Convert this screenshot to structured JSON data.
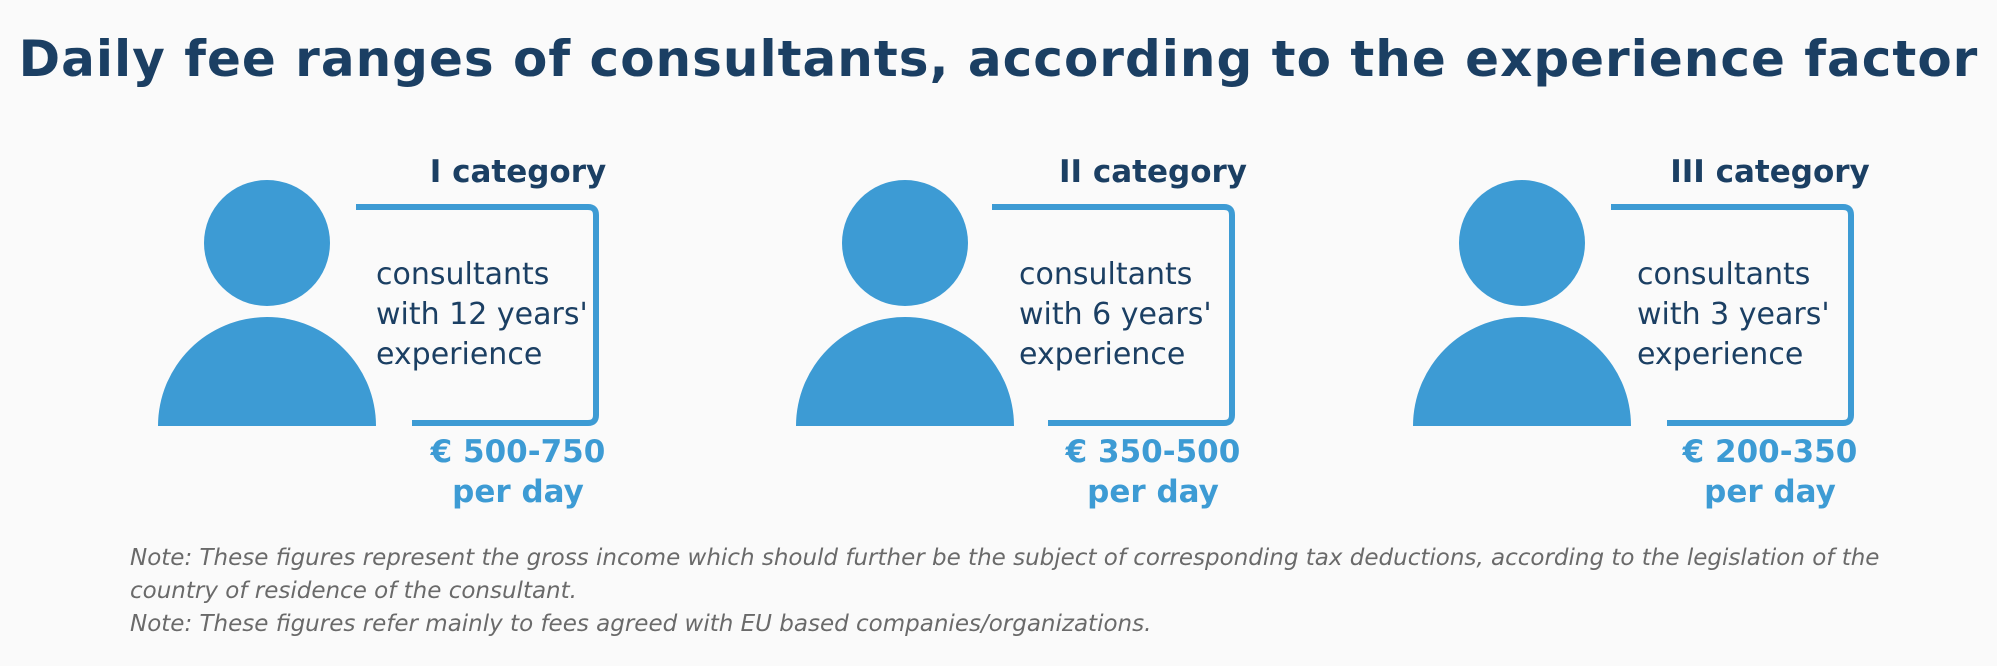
{
  "title": "Daily fee ranges of consultants, according to the experience factor",
  "colors": {
    "title": "#1b3f63",
    "accent": "#3d9bd4",
    "note": "#6a6a6a",
    "background": "#fafafa"
  },
  "categories": [
    {
      "label": "I category",
      "description": [
        "consultants",
        "with 12 years'",
        "experience"
      ],
      "fee": "€ 500-750",
      "unit": "per day",
      "icon": "person-icon"
    },
    {
      "label": "II category",
      "description": [
        "consultants",
        "with 6 years'",
        "experience"
      ],
      "fee": "€ 350-500",
      "unit": "per day",
      "icon": "person-icon"
    },
    {
      "label": "III category",
      "description": [
        "consultants",
        "with 3 years'",
        "experience"
      ],
      "fee": "€ 200-350",
      "unit": "per day",
      "icon": "person-icon"
    }
  ],
  "notes": [
    "Note: These figures represent the gross income which should further be the subject of corresponding tax deductions, according to the legislation of the country of residence of the consultant.",
    "Note: These figures refer mainly to fees agreed with EU based companies/organizations."
  ]
}
